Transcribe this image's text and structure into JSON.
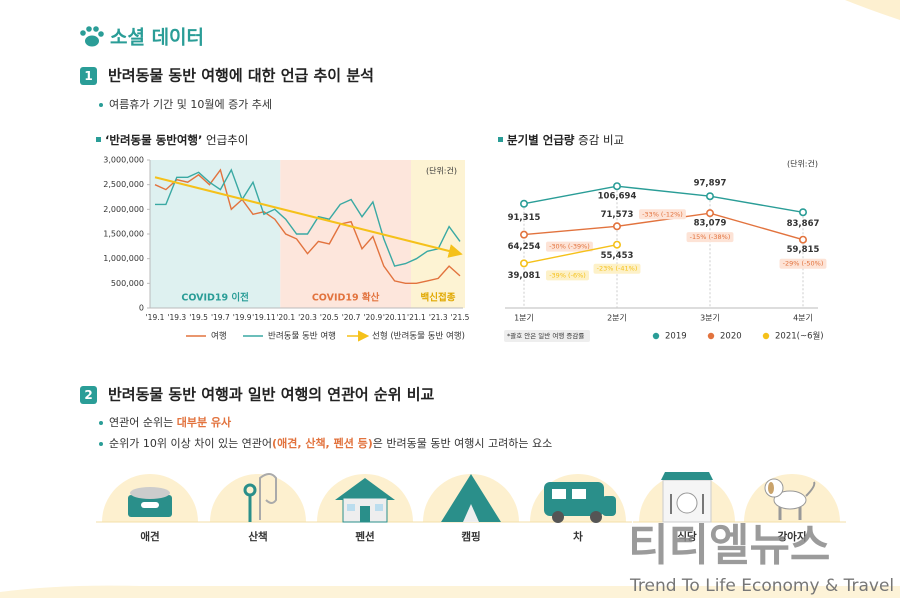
{
  "header": {
    "title": "소셜 데이터"
  },
  "section1": {
    "number": "1",
    "title": "반려동물 동반 여행에 대한 언급 추이 분석",
    "bullets": [
      "여름휴가 기간 및 10월에 증가 추세"
    ]
  },
  "chart_data": [
    {
      "type": "line",
      "title_parts": [
        "‘반려동물 동반여행’",
        " 언급추이"
      ],
      "unit": "(단위:건)",
      "categories": [
        "'19.1",
        null,
        "'19.3",
        null,
        "'19.5",
        null,
        "'19.7",
        null,
        "'19.9",
        null,
        "'19.11",
        null,
        "'20.1",
        null,
        "'20.3",
        null,
        "'20.5",
        null,
        "'20.7",
        null,
        "'20.9",
        null,
        "'20.11",
        null,
        "'21.1",
        null,
        "'21.3",
        null,
        "'21.5"
      ],
      "series": [
        {
          "name": "여행",
          "color": "#e2733e",
          "values": [
            2500000,
            2400000,
            2600000,
            2550000,
            2700000,
            2500000,
            2800000,
            2000000,
            2200000,
            1900000,
            1950000,
            1800000,
            1500000,
            1400000,
            1100000,
            1350000,
            1300000,
            1700000,
            1750000,
            1200000,
            1450000,
            850000,
            550000,
            500000,
            500000,
            550000,
            600000,
            850000,
            650000
          ]
        },
        {
          "name": "반려동물 동반 여행",
          "color": "#3aa9a3",
          "values": [
            2100000,
            2100000,
            2650000,
            2650000,
            2750000,
            2550000,
            2400000,
            2800000,
            2200000,
            2550000,
            1900000,
            2000000,
            1800000,
            1500000,
            1500000,
            1850000,
            1800000,
            2100000,
            2200000,
            1850000,
            2150000,
            1400000,
            850000,
            900000,
            1000000,
            1150000,
            1200000,
            1650000,
            1350000
          ]
        }
      ],
      "trendline": {
        "name": "선형 (반려동물 동반 여행)",
        "color": "#f5c11a",
        "values": [
          2650000,
          1100000
        ]
      },
      "regions": [
        {
          "label": "COVID19 이전",
          "color": "#def1f0",
          "text_color": "#2a9d97",
          "span": [
            0,
            11
          ]
        },
        {
          "label": "COVID19 확산",
          "color": "#fde6dc",
          "text_color": "#e2733e",
          "span": [
            12,
            23
          ]
        },
        {
          "label": "백신접종",
          "color": "#fdf3d3",
          "text_color": "#e0a800",
          "span": [
            24,
            28
          ]
        }
      ],
      "ylim": [
        0,
        3000000
      ],
      "yticks": [
        0,
        {
          "value": 500000,
          "label": "500,000"
        },
        {
          "value": 1000000,
          "label": "1,000,000"
        },
        {
          "value": 1500000,
          "label": "1,500,000"
        },
        {
          "value": 2000000,
          "label": "2,000,000"
        },
        {
          "value": 2500000,
          "label": "2,500,000"
        },
        {
          "value": 3000000,
          "label": "3,000,000"
        }
      ]
    },
    {
      "type": "line",
      "title_parts": [
        "분기별 언급량",
        " 증감 비교"
      ],
      "unit": "(단위:건)",
      "footnote": "*괄호 안은 일반 여행 증감률",
      "categories": [
        "1분기",
        "2분기",
        "3분기",
        "4분기"
      ],
      "series": [
        {
          "name": "2019",
          "color": "#2a9d97",
          "values": [
            91315,
            106694,
            97897,
            83867
          ],
          "value_labels": [
            "91,315",
            "106,694",
            "97,897",
            "83,867"
          ]
        },
        {
          "name": "2020",
          "color": "#e2733e",
          "values": [
            64254,
            71573,
            83079,
            59815
          ],
          "value_labels": [
            "64,254",
            "71,573",
            "83,079",
            "59,815"
          ],
          "annotations": [
            "-30% (-39%)",
            "-33% (-12%)",
            "-15% (-38%)",
            "-29% (-50%)"
          ]
        },
        {
          "name": "2021(~6월)",
          "color": "#f5c11a",
          "values": [
            39081,
            55453,
            null,
            null
          ],
          "value_labels": [
            "39,081",
            "55,453",
            null,
            null
          ],
          "annotations": [
            "-39% (-6%)",
            "-23% (-41%)",
            null,
            null
          ]
        }
      ],
      "ylim": [
        0,
        120000
      ]
    }
  ],
  "section2": {
    "number": "2",
    "title": "반려동물 동반 여행과 일반 여행의 연관어 순위 비교",
    "bullets": [
      [
        {
          "text": "연관어 순위는 "
        },
        {
          "text": "대부분 유사",
          "emphasis": true
        }
      ],
      [
        {
          "text": "순위가 10위 이상 차이 있는 연관어"
        },
        {
          "text": "(애견, 산책, 펜션 등)",
          "emphasis": true
        },
        {
          "text": "은 반려동물 동반 여행시 고려하는 요소"
        }
      ]
    ],
    "icons": [
      "애견",
      "산책",
      "펜션",
      "캠핑",
      "차",
      "식당",
      "강아지"
    ]
  },
  "watermark": {
    "title": "티티엘뉴스",
    "subtitle": "Trend To Life Economy & Travel"
  }
}
